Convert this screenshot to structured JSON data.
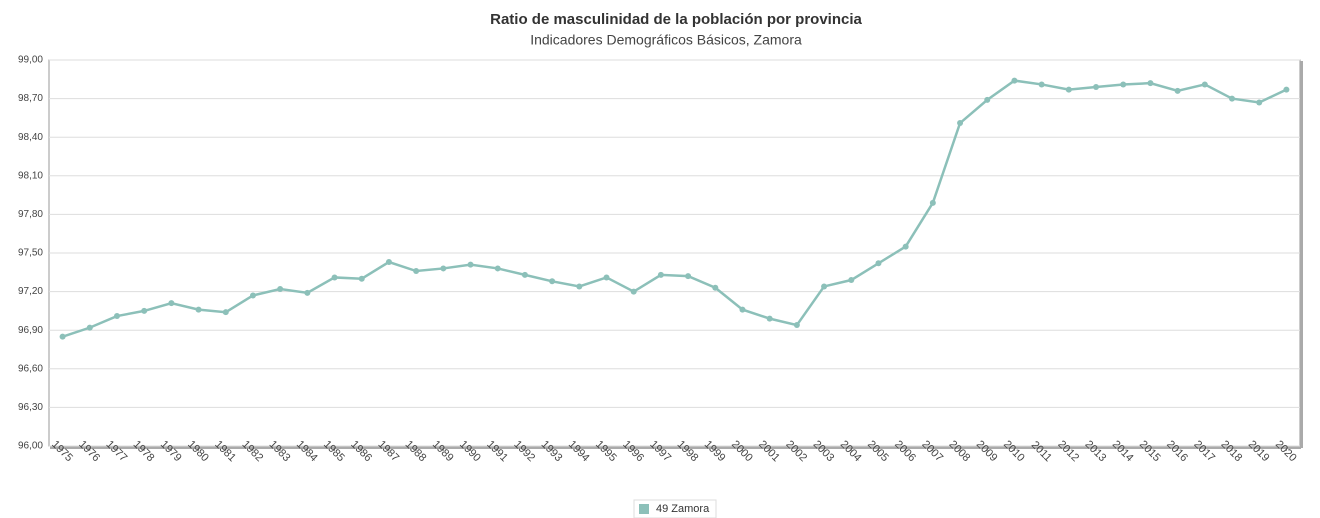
{
  "chart_data": {
    "type": "line",
    "title": "Ratio de masculinidad de la población por provincia",
    "subtitle": "Indicadores Demográficos Básicos, Zamora",
    "categories": [
      "1975",
      "1976",
      "1977",
      "1978",
      "1979",
      "1980",
      "1981",
      "1982",
      "1983",
      "1984",
      "1985",
      "1986",
      "1987",
      "1988",
      "1989",
      "1990",
      "1991",
      "1992",
      "1993",
      "1994",
      "1995",
      "1996",
      "1997",
      "1998",
      "1999",
      "2000",
      "2001",
      "2002",
      "2003",
      "2004",
      "2005",
      "2006",
      "2007",
      "2008",
      "2009",
      "2010",
      "2011",
      "2012",
      "2013",
      "2014",
      "2015",
      "2016",
      "2017",
      "2018",
      "2019",
      "2020"
    ],
    "series": [
      {
        "name": "49 Zamora",
        "color": "#8cc0b9",
        "values": [
          96.85,
          96.92,
          97.01,
          97.05,
          97.11,
          97.06,
          97.04,
          97.17,
          97.22,
          97.19,
          97.31,
          97.3,
          97.43,
          97.36,
          97.38,
          97.41,
          97.38,
          97.33,
          97.28,
          97.24,
          97.31,
          97.2,
          97.33,
          97.32,
          97.23,
          97.06,
          96.99,
          96.94,
          97.24,
          97.29,
          97.42,
          97.55,
          97.89,
          98.51,
          98.69,
          98.84,
          98.81,
          98.77,
          98.79,
          98.81,
          98.82,
          98.76,
          98.81,
          98.7,
          98.67,
          98.77
        ]
      }
    ],
    "ylim": [
      96,
      99
    ],
    "yticks": [
      {
        "value": 96,
        "label": "96,00"
      },
      {
        "value": 96.3,
        "label": "96,30"
      },
      {
        "value": 96.6,
        "label": "96,60"
      },
      {
        "value": 96.9,
        "label": "96,90"
      },
      {
        "value": 97.2,
        "label": "97,20"
      },
      {
        "value": 97.5,
        "label": "97,50"
      },
      {
        "value": 97.8,
        "label": "97,80"
      },
      {
        "value": 98.1,
        "label": "98,10"
      },
      {
        "value": 98.4,
        "label": "98,40"
      },
      {
        "value": 98.7,
        "label": "98,70"
      },
      {
        "value": 99,
        "label": "99,00"
      }
    ],
    "grid": true,
    "legend": "bottom"
  }
}
